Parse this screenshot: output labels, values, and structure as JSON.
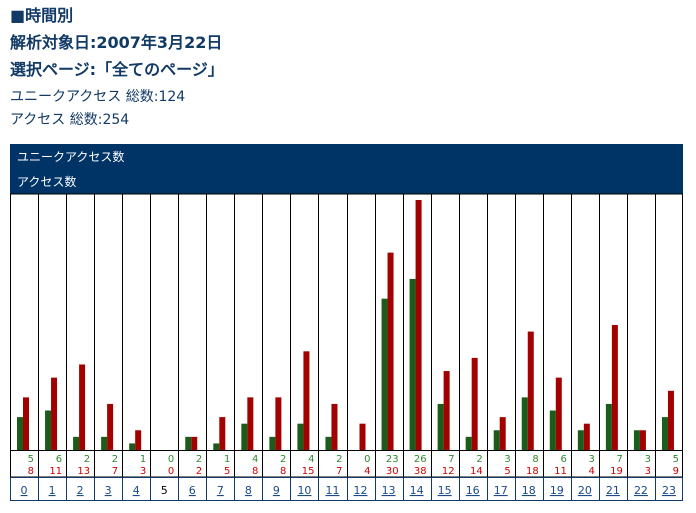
{
  "report": {
    "title": "■時間別",
    "date_line": "解析対象日:2007年3月22日",
    "page_line": "選択ページ:「全てのページ」",
    "unique_total_line": "ユニークアクセス 総数:124",
    "access_total_line": "アクセス 総数:254"
  },
  "colors": {
    "header_bg": "#003366",
    "unique": "#1a5c1a",
    "access": "#a30000",
    "unique_label": "#2e8b2e",
    "access_label": "#cc0000",
    "text": "#123a66",
    "link": "#1a4a8a"
  },
  "chart_data": {
    "type": "bar",
    "legend": [
      "ユニークアクセス数",
      "アクセス数"
    ],
    "categories": [
      "0",
      "1",
      "2",
      "3",
      "4",
      "5",
      "6",
      "7",
      "8",
      "9",
      "10",
      "11",
      "12",
      "13",
      "14",
      "15",
      "16",
      "17",
      "18",
      "19",
      "20",
      "21",
      "22",
      "23"
    ],
    "linked": [
      true,
      true,
      true,
      true,
      true,
      false,
      true,
      true,
      true,
      true,
      true,
      true,
      true,
      true,
      true,
      true,
      true,
      true,
      true,
      true,
      true,
      true,
      true,
      true
    ],
    "series": [
      {
        "name": "ユニークアクセス数",
        "values": [
          5,
          6,
          2,
          2,
          1,
          0,
          2,
          1,
          4,
          2,
          4,
          2,
          0,
          23,
          26,
          7,
          2,
          3,
          8,
          6,
          3,
          7,
          3,
          5
        ]
      },
      {
        "name": "アクセス数",
        "values": [
          8,
          11,
          13,
          7,
          3,
          0,
          2,
          5,
          8,
          8,
          15,
          7,
          4,
          30,
          38,
          12,
          14,
          5,
          18,
          11,
          4,
          19,
          3,
          9
        ]
      }
    ],
    "ylim": [
      0,
      38
    ]
  }
}
